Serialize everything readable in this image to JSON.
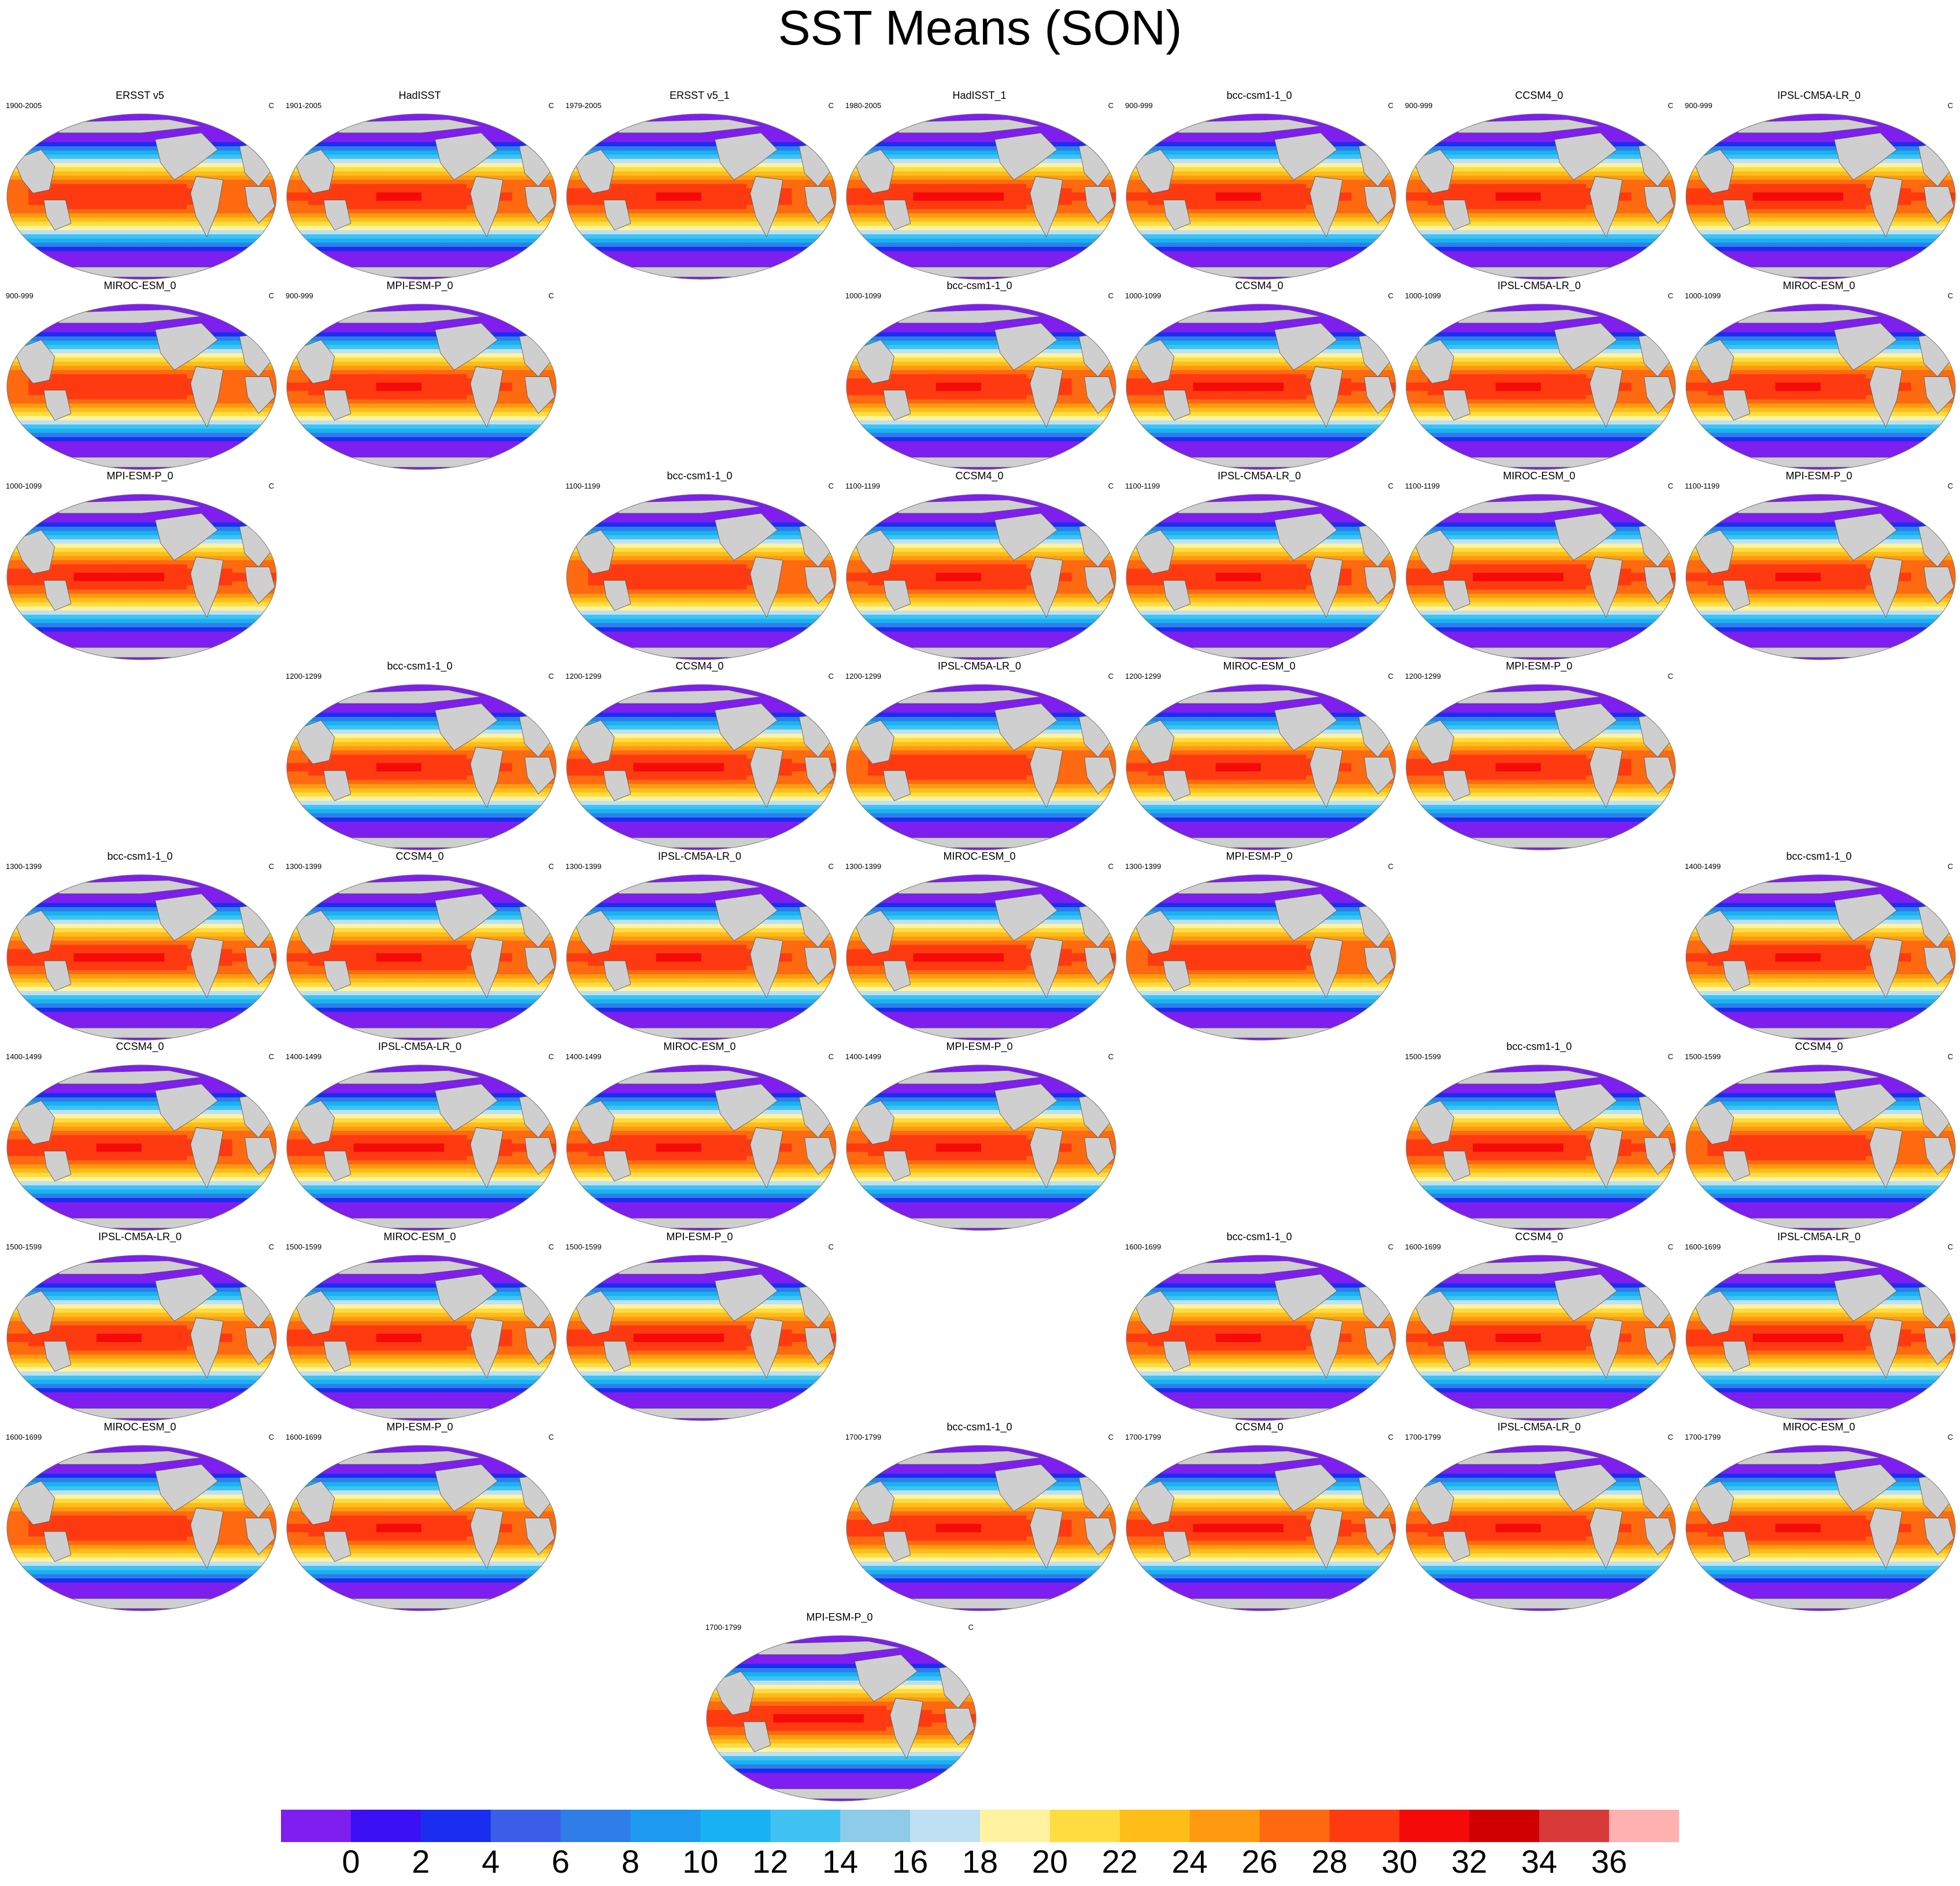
{
  "title": "SST Means (SON)",
  "chart_data": {
    "type": "contour-map-grid",
    "title": "SST Means (SON)",
    "units": "C",
    "panels": [
      {
        "name": "ERSST v5",
        "period": "1900-2005",
        "row": 0,
        "col": 0
      },
      {
        "name": "HadISST",
        "period": "1901-2005",
        "row": 0,
        "col": 1
      },
      {
        "name": "ERSST v5_1",
        "period": "1979-2005",
        "row": 0,
        "col": 2
      },
      {
        "name": "HadISST_1",
        "period": "1980-2005",
        "row": 0,
        "col": 3
      },
      {
        "name": "bcc-csm1-1_0",
        "period": "900-999",
        "row": 0,
        "col": 4
      },
      {
        "name": "CCSM4_0",
        "period": "900-999",
        "row": 0,
        "col": 5
      },
      {
        "name": "IPSL-CM5A-LR_0",
        "period": "900-999",
        "row": 0,
        "col": 6
      },
      {
        "name": "MIROC-ESM_0",
        "period": "900-999",
        "row": 1,
        "col": 0
      },
      {
        "name": "MPI-ESM-P_0",
        "period": "900-999",
        "row": 1,
        "col": 1
      },
      {
        "name": "bcc-csm1-1_0",
        "period": "1000-1099",
        "row": 1,
        "col": 3
      },
      {
        "name": "CCSM4_0",
        "period": "1000-1099",
        "row": 1,
        "col": 4
      },
      {
        "name": "IPSL-CM5A-LR_0",
        "period": "1000-1099",
        "row": 1,
        "col": 5
      },
      {
        "name": "MIROC-ESM_0",
        "period": "1000-1099",
        "row": 1,
        "col": 6
      },
      {
        "name": "MPI-ESM-P_0",
        "period": "1000-1099",
        "row": 2,
        "col": 0
      },
      {
        "name": "bcc-csm1-1_0",
        "period": "1100-1199",
        "row": 2,
        "col": 2
      },
      {
        "name": "CCSM4_0",
        "period": "1100-1199",
        "row": 2,
        "col": 3
      },
      {
        "name": "IPSL-CM5A-LR_0",
        "period": "1100-1199",
        "row": 2,
        "col": 4
      },
      {
        "name": "MIROC-ESM_0",
        "period": "1100-1199",
        "row": 2,
        "col": 5
      },
      {
        "name": "MPI-ESM-P_0",
        "period": "1100-1199",
        "row": 2,
        "col": 6
      },
      {
        "name": "bcc-csm1-1_0",
        "period": "1200-1299",
        "row": 3,
        "col": 1
      },
      {
        "name": "CCSM4_0",
        "period": "1200-1299",
        "row": 3,
        "col": 2
      },
      {
        "name": "IPSL-CM5A-LR_0",
        "period": "1200-1299",
        "row": 3,
        "col": 3
      },
      {
        "name": "MIROC-ESM_0",
        "period": "1200-1299",
        "row": 3,
        "col": 4
      },
      {
        "name": "MPI-ESM-P_0",
        "period": "1200-1299",
        "row": 3,
        "col": 5
      },
      {
        "name": "bcc-csm1-1_0",
        "period": "1300-1399",
        "row": 4,
        "col": 0
      },
      {
        "name": "CCSM4_0",
        "period": "1300-1399",
        "row": 4,
        "col": 1
      },
      {
        "name": "IPSL-CM5A-LR_0",
        "period": "1300-1399",
        "row": 4,
        "col": 2
      },
      {
        "name": "MIROC-ESM_0",
        "period": "1300-1399",
        "row": 4,
        "col": 3
      },
      {
        "name": "MPI-ESM-P_0",
        "period": "1300-1399",
        "row": 4,
        "col": 4
      },
      {
        "name": "bcc-csm1-1_0",
        "period": "1400-1499",
        "row": 4,
        "col": 6
      },
      {
        "name": "CCSM4_0",
        "period": "1400-1499",
        "row": 5,
        "col": 0
      },
      {
        "name": "IPSL-CM5A-LR_0",
        "period": "1400-1499",
        "row": 5,
        "col": 1
      },
      {
        "name": "MIROC-ESM_0",
        "period": "1400-1499",
        "row": 5,
        "col": 2
      },
      {
        "name": "MPI-ESM-P_0",
        "period": "1400-1499",
        "row": 5,
        "col": 3
      },
      {
        "name": "bcc-csm1-1_0",
        "period": "1500-1599",
        "row": 5,
        "col": 5
      },
      {
        "name": "CCSM4_0",
        "period": "1500-1599",
        "row": 5,
        "col": 6
      },
      {
        "name": "IPSL-CM5A-LR_0",
        "period": "1500-1599",
        "row": 6,
        "col": 0
      },
      {
        "name": "MIROC-ESM_0",
        "period": "1500-1599",
        "row": 6,
        "col": 1
      },
      {
        "name": "MPI-ESM-P_0",
        "period": "1500-1599",
        "row": 6,
        "col": 2
      },
      {
        "name": "bcc-csm1-1_0",
        "period": "1600-1699",
        "row": 6,
        "col": 4
      },
      {
        "name": "CCSM4_0",
        "period": "1600-1699",
        "row": 6,
        "col": 5
      },
      {
        "name": "IPSL-CM5A-LR_0",
        "period": "1600-1699",
        "row": 6,
        "col": 6
      },
      {
        "name": "MIROC-ESM_0",
        "period": "1600-1699",
        "row": 7,
        "col": 0
      },
      {
        "name": "MPI-ESM-P_0",
        "period": "1600-1699",
        "row": 7,
        "col": 1
      },
      {
        "name": "bcc-csm1-1_0",
        "period": "1700-1799",
        "row": 7,
        "col": 3
      },
      {
        "name": "CCSM4_0",
        "period": "1700-1799",
        "row": 7,
        "col": 4
      },
      {
        "name": "IPSL-CM5A-LR_0",
        "period": "1700-1799",
        "row": 7,
        "col": 5
      },
      {
        "name": "MIROC-ESM_0",
        "period": "1700-1799",
        "row": 7,
        "col": 6
      },
      {
        "name": "MPI-ESM-P_0",
        "period": "1700-1799",
        "row": 8,
        "col": 2.5
      }
    ],
    "colorbar": {
      "ticks": [
        0,
        2,
        4,
        6,
        8,
        10,
        12,
        14,
        16,
        18,
        20,
        22,
        24,
        26,
        28,
        30,
        32,
        34,
        36
      ],
      "colors": [
        "#7e1eef",
        "#3b10f5",
        "#1a2ef0",
        "#3a5ee8",
        "#2f7de8",
        "#1d99f0",
        "#17b2f2",
        "#3fc2f2",
        "#8ecbe8",
        "#bfe0f2",
        "#fff3a0",
        "#ffdd40",
        "#ffbd1a",
        "#ff9a10",
        "#ff6a10",
        "#ff3a10",
        "#f50a0a",
        "#d00000",
        "#d83a3a",
        "#ffb0b0"
      ]
    },
    "land_color": "#cfcfcf"
  }
}
